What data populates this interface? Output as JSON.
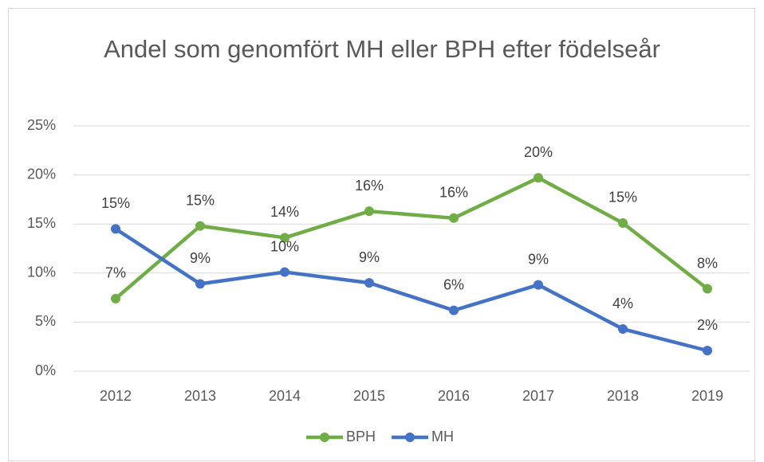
{
  "chart_data": {
    "type": "line",
    "title": "Andel som genomfört MH eller BPH efter födelseår",
    "categories": [
      "2012",
      "2013",
      "2014",
      "2015",
      "2016",
      "2017",
      "2018",
      "2019"
    ],
    "series": [
      {
        "name": "BPH",
        "color": "#70ad47",
        "values": [
          7.4,
          14.8,
          13.6,
          16.3,
          15.6,
          19.7,
          15.1,
          8.4
        ],
        "value_labels": [
          "7%",
          "15%",
          "14%",
          "16%",
          "16%",
          "20%",
          "15%",
          "8%"
        ]
      },
      {
        "name": "MH",
        "color": "#4472c4",
        "values": [
          14.5,
          8.9,
          10.1,
          9.0,
          6.2,
          8.8,
          4.3,
          2.1
        ],
        "value_labels": [
          "15%",
          "9%",
          "10%",
          "9%",
          "6%",
          "9%",
          "4%",
          "2%"
        ]
      }
    ],
    "ylim": [
      0,
      25
    ],
    "yticks": [
      {
        "value": 0,
        "label": "0%"
      },
      {
        "value": 5,
        "label": "5%"
      },
      {
        "value": 10,
        "label": "10%"
      },
      {
        "value": 15,
        "label": "15%"
      },
      {
        "value": 20,
        "label": "20%"
      },
      {
        "value": 25,
        "label": "25%"
      }
    ],
    "grid": true,
    "legend": "bottom"
  }
}
